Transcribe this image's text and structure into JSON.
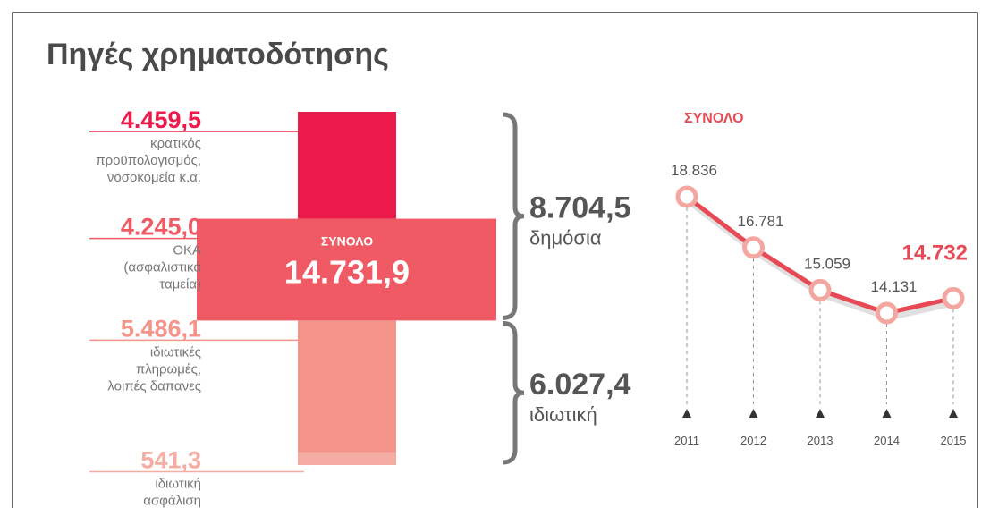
{
  "title": "Πηγές χρηματοδότησης",
  "chart_data": [
    {
      "type": "cross",
      "segments": [
        {
          "value": 4459.5,
          "value_label": "4.459,5",
          "label": [
            "κρατικός",
            "προϋπολογισμός,",
            "νοσοκομεία κ.α."
          ],
          "color": "#ec1b4b"
        },
        {
          "value": 4245.0,
          "value_label": "4.245,0",
          "label": [
            "ΟΚΑ",
            "(ασφαλιστικά",
            "ταμεία)"
          ],
          "color": "#ef5a64"
        },
        {
          "value": 5486.1,
          "value_label": "5.486,1",
          "label": [
            "ιδιωτικές",
            "πληρωμές,",
            "λοιπές δαπανες"
          ],
          "color": "#f4948a"
        },
        {
          "value": 541.3,
          "value_label": "541,3",
          "label": [
            "ιδιωτική",
            "ασφάλιση"
          ],
          "color": "#f5aca3"
        }
      ],
      "total_label": "ΣΥΝΟΛΟ",
      "total": 14731.9,
      "total_value_label": "14.731,9",
      "groups": [
        {
          "value": 8704.5,
          "value_label": "8.704,5",
          "label": "δημόσια"
        },
        {
          "value": 6027.4,
          "value_label": "6.027,4",
          "label": "ιδιωτική"
        }
      ]
    },
    {
      "type": "line",
      "title": "ΣΥΝΟΛΟ",
      "categories": [
        "2011",
        "2012",
        "2013",
        "2014",
        "2015"
      ],
      "values": [
        18836,
        16781,
        15059,
        14131,
        14732
      ],
      "value_labels": [
        "18.836",
        "16.781",
        "15.059",
        "14.131",
        "14.732"
      ],
      "color": "#e84a55"
    }
  ]
}
